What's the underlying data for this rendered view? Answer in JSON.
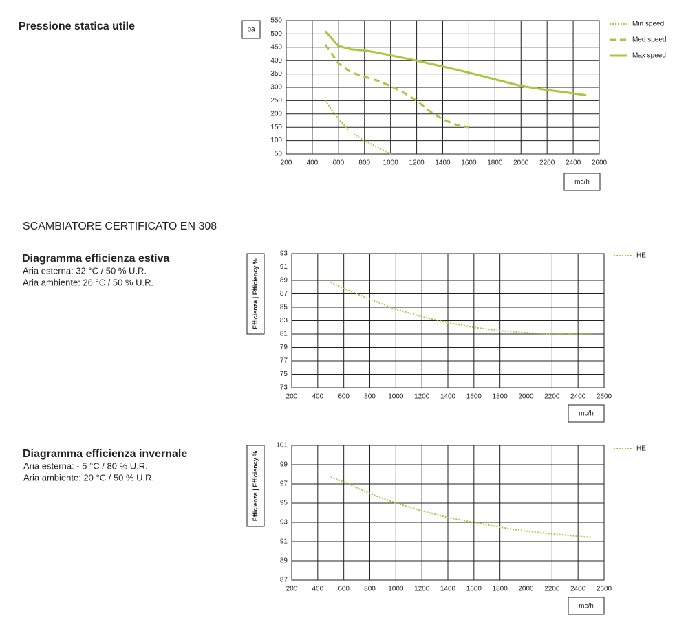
{
  "section_title": "SCAMBIATORE CERTIFICATO EN 308",
  "chart_data": [
    {
      "type": "line",
      "title": "Pressione statica utile",
      "ylabel": "pa",
      "xlabel": "mc/h",
      "xlim": [
        200,
        2600
      ],
      "xticks": [
        200,
        400,
        600,
        800,
        1000,
        1200,
        1400,
        1600,
        1800,
        2000,
        2200,
        2400,
        2600
      ],
      "ylim": [
        50,
        550
      ],
      "yticks": [
        50,
        100,
        150,
        200,
        250,
        300,
        350,
        400,
        450,
        500,
        550
      ],
      "grid": true,
      "series": [
        {
          "name": "Min speed",
          "color": "#a5c83c",
          "style": "dotted",
          "x": [
            500,
            600,
            700,
            800,
            900,
            1000
          ],
          "values": [
            250,
            180,
            130,
            100,
            75,
            50
          ]
        },
        {
          "name": "Med speed",
          "color": "#a5c83c",
          "style": "dashed",
          "x": [
            500,
            600,
            700,
            800,
            900,
            1000,
            1100,
            1200,
            1300,
            1400,
            1500,
            1600
          ],
          "values": [
            460,
            390,
            355,
            340,
            325,
            305,
            280,
            250,
            210,
            180,
            160,
            150
          ]
        },
        {
          "name": "Max speed",
          "color": "#a5c83c",
          "style": "solid",
          "x": [
            500,
            600,
            700,
            800,
            900,
            1000,
            1200,
            1400,
            1600,
            1800,
            2000,
            2200,
            2400,
            2500
          ],
          "values": [
            510,
            455,
            442,
            438,
            430,
            420,
            400,
            378,
            355,
            330,
            305,
            290,
            277,
            270
          ]
        }
      ]
    },
    {
      "type": "line",
      "title": "Diagramma efficienza estiva",
      "subtitle": [
        "Aria esterna: 32 °C / 50 % U.R.",
        "Aria ambiente: 26 °C / 50 % U.R."
      ],
      "ylabel": "Efficienza | Efficiency %",
      "xlabel": "mc/h",
      "xlim": [
        200,
        2600
      ],
      "xticks": [
        200,
        400,
        600,
        800,
        1000,
        1200,
        1400,
        1600,
        1800,
        2000,
        2200,
        2400,
        2600
      ],
      "ylim": [
        73,
        93
      ],
      "yticks": [
        73,
        75,
        77,
        79,
        81,
        83,
        85,
        87,
        89,
        91,
        93
      ],
      "grid": true,
      "series": [
        {
          "name": "HE",
          "color": "#a5c83c",
          "style": "dotted",
          "x": [
            500,
            600,
            800,
            1000,
            1200,
            1400,
            1600,
            1800,
            2000,
            2200,
            2400,
            2500
          ],
          "values": [
            88.7,
            87.8,
            86.2,
            84.7,
            83.6,
            82.7,
            82.0,
            81.5,
            81.2,
            81.0,
            81.0,
            81.0
          ]
        }
      ]
    },
    {
      "type": "line",
      "title": "Diagramma efficienza invernale",
      "subtitle": [
        "Aria esterna: - 5 °C / 80 % U.R.",
        "Aria ambiente: 20 °C / 50 % U.R."
      ],
      "ylabel": "Efficienza | Efficiency %",
      "xlabel": "mc/h",
      "xlim": [
        200,
        2600
      ],
      "xticks": [
        200,
        400,
        600,
        800,
        1000,
        1200,
        1400,
        1600,
        1800,
        2000,
        2200,
        2400,
        2600
      ],
      "ylim": [
        87,
        101
      ],
      "yticks": [
        87,
        89,
        91,
        93,
        95,
        97,
        99,
        101
      ],
      "grid": true,
      "series": [
        {
          "name": "HE",
          "color": "#a5c83c",
          "style": "dotted",
          "x": [
            500,
            600,
            800,
            1000,
            1200,
            1400,
            1600,
            1800,
            2000,
            2200,
            2400,
            2500
          ],
          "values": [
            97.7,
            97.2,
            96.0,
            95.0,
            94.2,
            93.5,
            93.0,
            92.5,
            92.1,
            91.8,
            91.55,
            91.45
          ]
        }
      ]
    }
  ]
}
